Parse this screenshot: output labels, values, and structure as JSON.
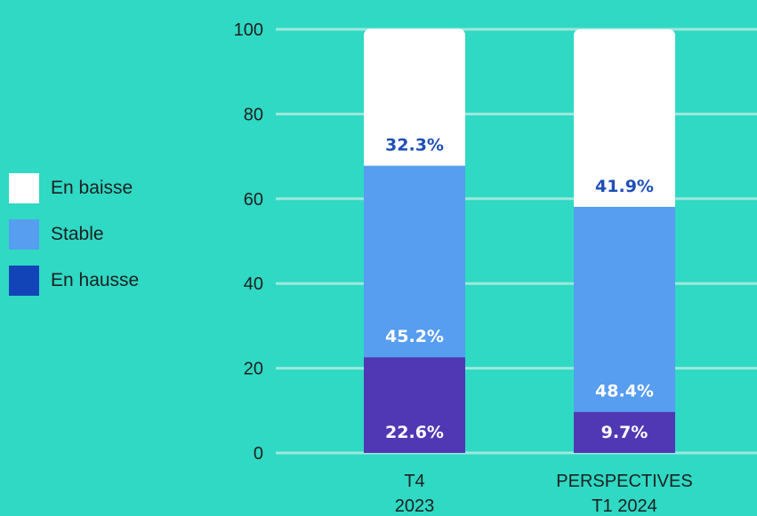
{
  "colors": {
    "background": "#2fd9c4",
    "gridline": "#9fe8dc",
    "label_dark": "#1f1f1f",
    "label_blue": "#1f4fb8",
    "label_white": "#ffffff"
  },
  "legend": {
    "items": [
      {
        "label": "En baisse",
        "color": "#ffffff"
      },
      {
        "label": "Stable",
        "color": "#579df0"
      },
      {
        "label": "En hausse",
        "color": "#1244b7"
      }
    ]
  },
  "chart_data": {
    "type": "bar",
    "stacked": true,
    "title": "",
    "xlabel": "",
    "ylabel": "",
    "ylim": [
      0,
      100
    ],
    "yticks": [
      0,
      20,
      40,
      60,
      80,
      100
    ],
    "grid": true,
    "legend_position": "left",
    "categories": [
      [
        "T4",
        "2023"
      ],
      [
        "PERSPECTIVES",
        "T1 2024"
      ]
    ],
    "series": [
      {
        "name": "En hausse",
        "color": "#5038b4",
        "values": [
          22.6,
          9.7
        ],
        "labels": [
          "22.6%",
          "9.7%"
        ],
        "label_color": "#ffffff"
      },
      {
        "name": "Stable",
        "color": "#579df0",
        "values": [
          45.2,
          48.4
        ],
        "labels": [
          "45.2%",
          "48.4%"
        ],
        "label_color": "#ffffff"
      },
      {
        "name": "En baisse",
        "color": "#ffffff",
        "values": [
          32.3,
          41.9
        ],
        "labels": [
          "32.3%",
          "41.9%"
        ],
        "label_color": "#1f4fb8"
      }
    ]
  }
}
